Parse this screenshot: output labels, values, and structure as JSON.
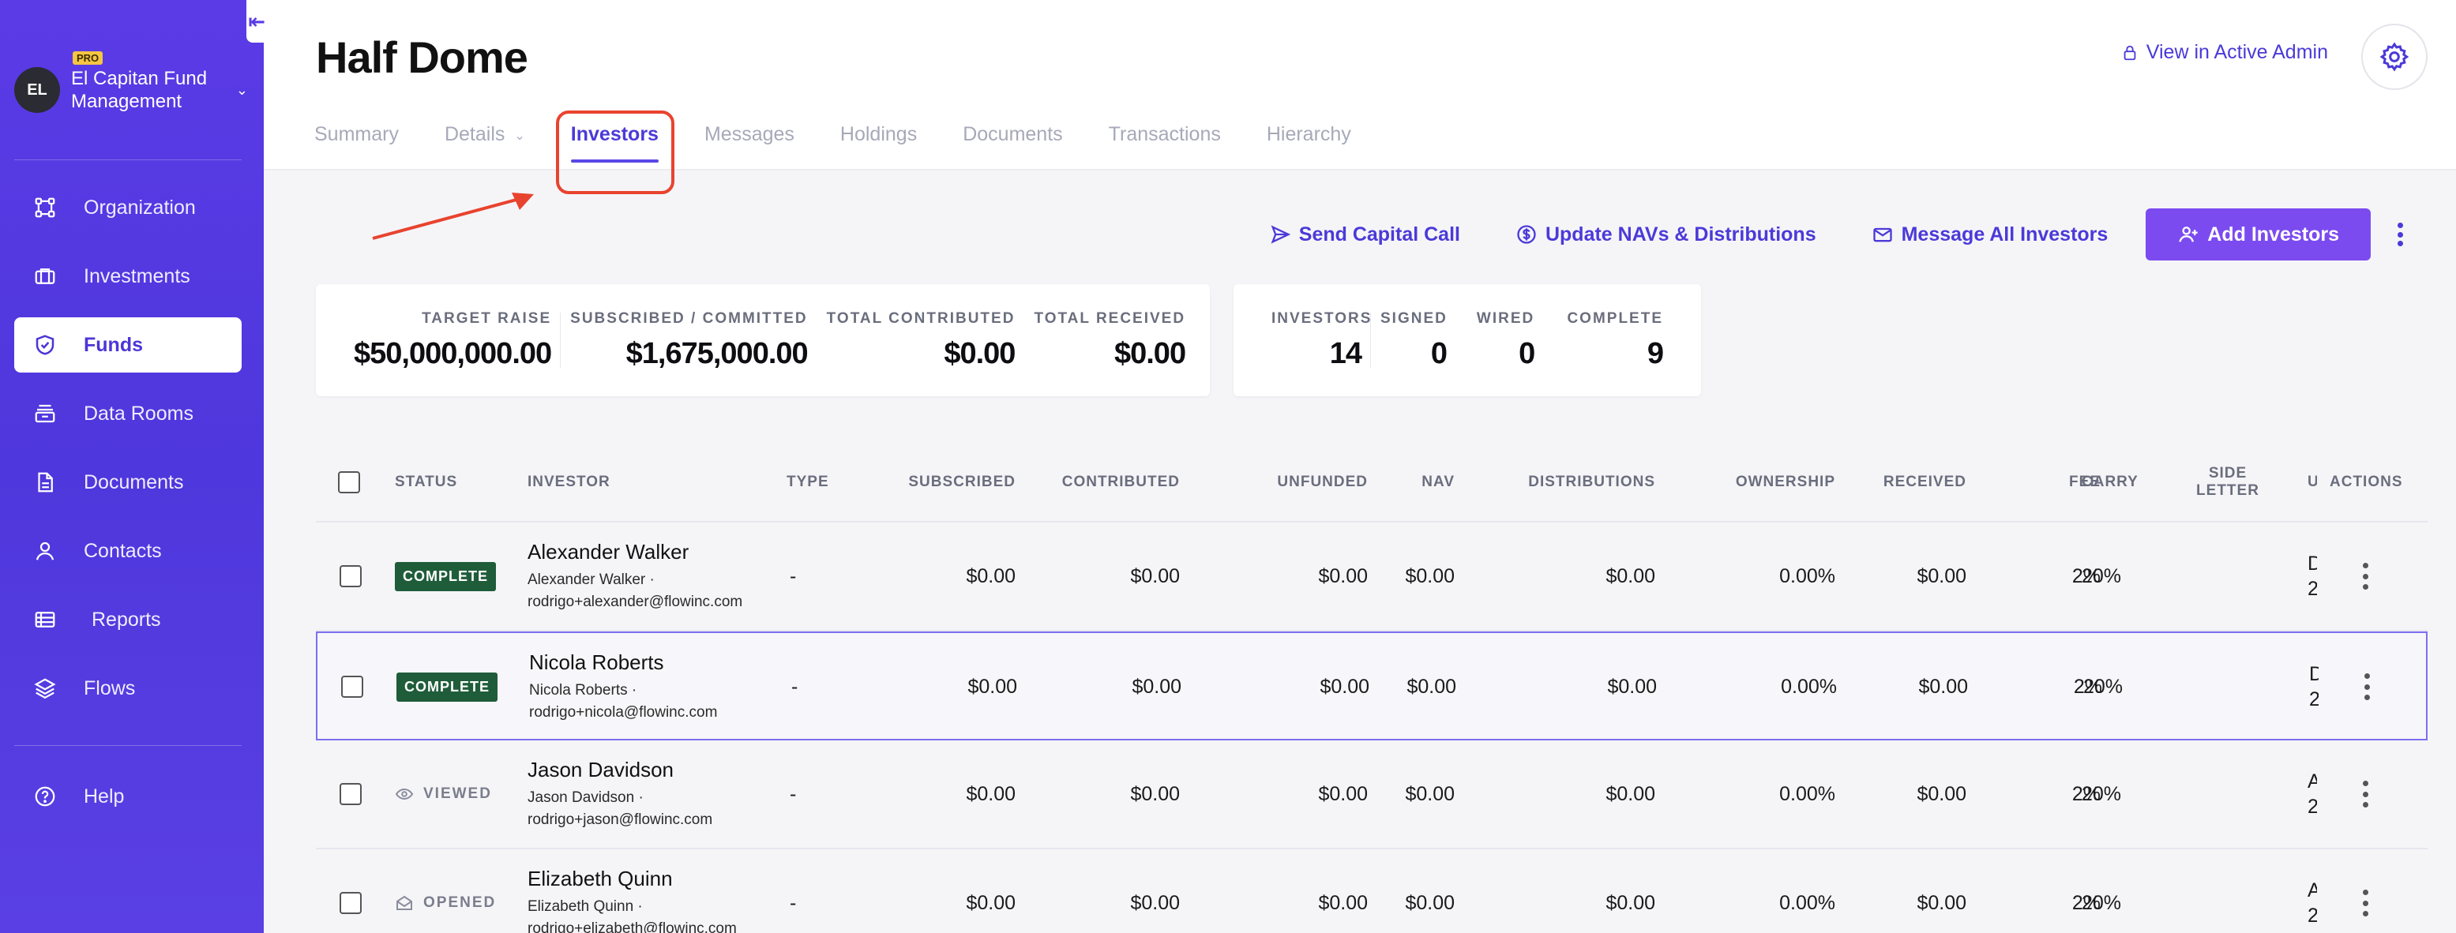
{
  "sidebar": {
    "org": {
      "initials": "EL",
      "badge": "PRO",
      "name": "El Capitan Fund Management"
    },
    "items": [
      {
        "label": "Organization",
        "icon": "organization-icon"
      },
      {
        "label": "Investments",
        "icon": "briefcase-icon"
      },
      {
        "label": "Funds",
        "icon": "shield-check-icon",
        "active": true
      },
      {
        "label": "Data Rooms",
        "icon": "stack-icon"
      },
      {
        "label": "Documents",
        "icon": "document-icon"
      },
      {
        "label": "Contacts",
        "icon": "person-icon"
      },
      {
        "label": "Reports",
        "icon": "table-icon"
      },
      {
        "label": "Flows",
        "icon": "layers-icon"
      }
    ],
    "help": "Help"
  },
  "header": {
    "title": "Half Dome",
    "admin_link": "View in Active Admin"
  },
  "tabs": [
    "Summary",
    "Details",
    "Investors",
    "Messages",
    "Holdings",
    "Documents",
    "Transactions",
    "Hierarchy"
  ],
  "actions": {
    "send_capital_call": "Send Capital Call",
    "update_navs": "Update NAVs & Distributions",
    "message_all": "Message All Investors",
    "add_investors": "Add Investors"
  },
  "stats_money": [
    {
      "label": "TARGET RAISE",
      "value": "$50,000,000.00"
    },
    {
      "label": "SUBSCRIBED / COMMITTED",
      "value": "$1,675,000.00"
    },
    {
      "label": "TOTAL CONTRIBUTED",
      "value": "$0.00"
    },
    {
      "label": "TOTAL RECEIVED",
      "value": "$0.00"
    }
  ],
  "stats_count": [
    {
      "label": "INVESTORS",
      "value": "14"
    },
    {
      "label": "SIGNED",
      "value": "0"
    },
    {
      "label": "WIRED",
      "value": "0"
    },
    {
      "label": "COMPLETE",
      "value": "9"
    }
  ],
  "table": {
    "headers": {
      "status": "STATUS",
      "investor": "INVESTOR",
      "type": "TYPE",
      "subscribed": "SUBSCRIBED",
      "contributed": "CONTRIBUTED",
      "unfunded": "UNFUNDED",
      "nav": "NAV",
      "distributions": "DISTRIBUTIONS",
      "ownership": "OWNERSHIP",
      "received": "RECEIVED",
      "fee": "FEE",
      "carry": "CARRY",
      "side_letter_1": "SIDE",
      "side_letter_2": "LETTER",
      "updated": "U",
      "actions": "ACTIONS"
    },
    "rows": [
      {
        "status": "COMPLETE",
        "status_kind": "complete",
        "name": "Alexander Walker",
        "sub1": "Alexander Walker ·",
        "sub2": "rodrigo+alexander@flowinc.com",
        "type": "-",
        "subscribed": "$0.00",
        "contributed": "$0.00",
        "unfunded": "$0.00",
        "nav": "$0.00",
        "distributions": "$0.00",
        "ownership": "0.00%",
        "received": "$0.00",
        "fee": "2%",
        "carry": "20%",
        "u1": "D",
        "u2": "2"
      },
      {
        "status": "COMPLETE",
        "status_kind": "complete",
        "name": "Nicola Roberts",
        "sub1": "Nicola Roberts ·",
        "sub2": "rodrigo+nicola@flowinc.com",
        "type": "-",
        "subscribed": "$0.00",
        "contributed": "$0.00",
        "unfunded": "$0.00",
        "nav": "$0.00",
        "distributions": "$0.00",
        "ownership": "0.00%",
        "received": "$0.00",
        "fee": "2%",
        "carry": "20%",
        "u1": "D",
        "u2": "2"
      },
      {
        "status": "VIEWED",
        "status_kind": "viewed",
        "name": "Jason Davidson",
        "sub1": "Jason Davidson ·",
        "sub2": "rodrigo+jason@flowinc.com",
        "type": "-",
        "subscribed": "$0.00",
        "contributed": "$0.00",
        "unfunded": "$0.00",
        "nav": "$0.00",
        "distributions": "$0.00",
        "ownership": "0.00%",
        "received": "$0.00",
        "fee": "2%",
        "carry": "20%",
        "u1": "A",
        "u2": "2"
      },
      {
        "status": "OPENED",
        "status_kind": "opened",
        "name": "Elizabeth Quinn",
        "sub1": "Elizabeth Quinn ·",
        "sub2": "rodrigo+elizabeth@flowinc.com",
        "type": "-",
        "subscribed": "$0.00",
        "contributed": "$0.00",
        "unfunded": "$0.00",
        "nav": "$0.00",
        "distributions": "$0.00",
        "ownership": "0.00%",
        "received": "$0.00",
        "fee": "2%",
        "carry": "20%",
        "u1": "A",
        "u2": "2"
      }
    ]
  }
}
